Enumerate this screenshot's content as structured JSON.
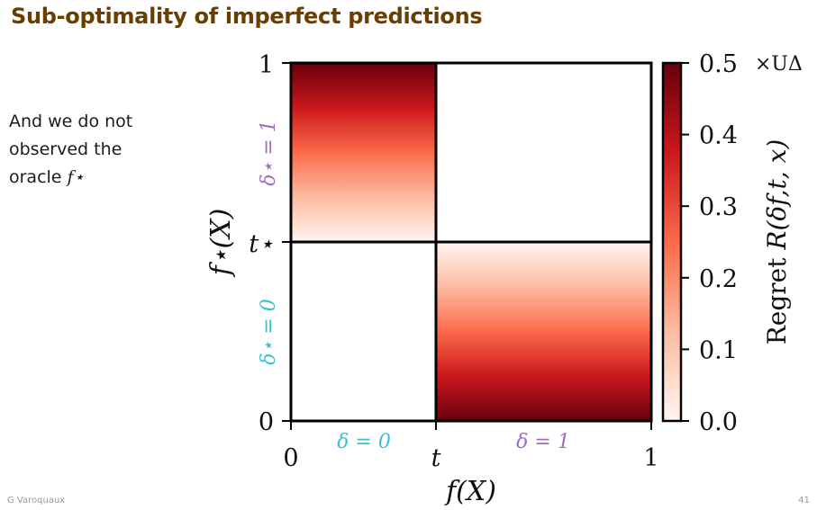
{
  "slide": {
    "title": "Sub-optimality of imperfect predictions",
    "note_line1": "And we do not",
    "note_line2": "observed the",
    "note_line3_prefix": "oracle ",
    "note_line3_symbol": "f⋆",
    "author": "G Varoquaux",
    "page": "41"
  },
  "chart_data": {
    "type": "heatmap",
    "xlabel": "f(X)",
    "ylabel": "f⋆(X)",
    "x_ticks": [
      "0",
      "t",
      "1"
    ],
    "y_ticks": [
      "0",
      "t⋆",
      "1"
    ],
    "region_labels": {
      "x_low": "δ = 0",
      "x_high": "δ = 1",
      "y_low": "δ⋆ = 0",
      "y_high": "δ⋆ = 1"
    },
    "regions": [
      {
        "x": "[0, t]",
        "y": "[t⋆, 1]",
        "regret_min": 0.0,
        "regret_max": 0.5,
        "gradient": "increases toward f⋆(X)=1"
      },
      {
        "x": "[t, 1]",
        "y": "[t⋆, 1]",
        "regret": 0.0
      },
      {
        "x": "[0, t]",
        "y": "[0, t⋆]",
        "regret": 0.0
      },
      {
        "x": "[t, 1]",
        "y": "[0, t⋆]",
        "regret_min": 0.0,
        "regret_max": 0.5,
        "gradient": "increases toward f⋆(X)=0"
      }
    ],
    "colorbar": {
      "label_prefix": "Regret ",
      "label_symbol": "R(δf,t, x)",
      "ticks": [
        "0.0",
        "0.1",
        "0.2",
        "0.3",
        "0.4",
        "0.5"
      ],
      "range": [
        0.0,
        0.5
      ],
      "multiplier": "×UΔ",
      "colormap": [
        "#fff5f0",
        "#fcbba1",
        "#fb6a4a",
        "#cb181d",
        "#67000d"
      ]
    }
  }
}
